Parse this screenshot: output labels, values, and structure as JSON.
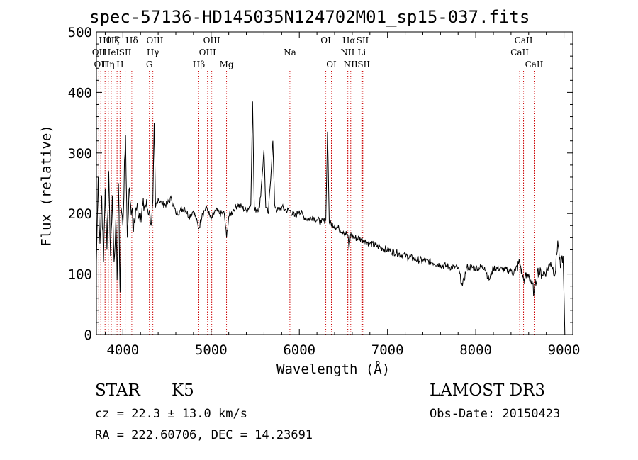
{
  "header": {
    "title": "spec-57136-HD145035N124702M01_sp15-037.fits"
  },
  "info": {
    "object_class": "STAR",
    "subclass": "K5",
    "survey": "LAMOST DR3",
    "cz": "cz = 22.3 ± 13.0 km/s",
    "obs_date": "Obs-Date: 20150423",
    "radec": "RA = 222.60706, DEC =  14.23691"
  },
  "chart_data": {
    "type": "line",
    "title": "spec-57136-HD145035N124702M01_sp15-037.fits",
    "xlabel": "Wavelength (Å)",
    "ylabel": "Flux (relative)",
    "xlim": [
      3700,
      9100
    ],
    "ylim": [
      0,
      500
    ],
    "xticks": [
      4000,
      5000,
      6000,
      7000,
      8000,
      9000
    ],
    "yticks": [
      0,
      100,
      200,
      300,
      400,
      500
    ],
    "series": [
      {
        "name": "flux",
        "x": [
          3700,
          3720,
          3740,
          3760,
          3780,
          3800,
          3820,
          3840,
          3860,
          3880,
          3900,
          3920,
          3935,
          3950,
          3968,
          3980,
          4000,
          4030,
          4050,
          4070,
          4101,
          4120,
          4150,
          4200,
          4250,
          4300,
          4320,
          4340,
          4355,
          4370,
          4400,
          4450,
          4500,
          4550,
          4600,
          4650,
          4700,
          4750,
          4800,
          4861,
          4900,
          4950,
          5000,
          5050,
          5100,
          5150,
          5175,
          5200,
          5250,
          5300,
          5350,
          5400,
          5450,
          5470,
          5490,
          5550,
          5600,
          5620,
          5650,
          5700,
          5720,
          5750,
          5800,
          5850,
          5893,
          5950,
          6000,
          6050,
          6100,
          6150,
          6200,
          6250,
          6300,
          6320,
          6340,
          6400,
          6450,
          6500,
          6550,
          6563,
          6580,
          6620,
          6700,
          6800,
          6900,
          7000,
          7100,
          7200,
          7300,
          7400,
          7500,
          7600,
          7700,
          7800,
          7850,
          7900,
          8000,
          8100,
          8150,
          8200,
          8300,
          8400,
          8450,
          8498,
          8542,
          8600,
          8662,
          8700,
          8750,
          8800,
          8850,
          8900,
          8930,
          8960,
          8990,
          9010
        ],
        "y": [
          120,
          260,
          150,
          230,
          120,
          240,
          140,
          270,
          130,
          230,
          120,
          190,
          90,
          250,
          70,
          210,
          180,
          330,
          160,
          240,
          205,
          170,
          210,
          200,
          215,
          205,
          180,
          220,
          350,
          210,
          225,
          215,
          215,
          225,
          200,
          205,
          210,
          195,
          205,
          175,
          200,
          210,
          190,
          205,
          200,
          200,
          160,
          195,
          205,
          215,
          210,
          205,
          215,
          385,
          205,
          210,
          305,
          210,
          200,
          320,
          215,
          205,
          210,
          205,
          205,
          195,
          205,
          195,
          190,
          195,
          190,
          185,
          190,
          335,
          185,
          180,
          175,
          170,
          165,
          140,
          165,
          160,
          158,
          150,
          145,
          140,
          135,
          130,
          125,
          122,
          120,
          115,
          112,
          110,
          80,
          112,
          110,
          112,
          90,
          110,
          108,
          105,
          105,
          120,
          90,
          100,
          70,
          105,
          100,
          105,
          120,
          100,
          155,
          110,
          130,
          0
        ]
      }
    ],
    "lines": [
      {
        "w": 3727,
        "label": "OII",
        "row": 2
      },
      {
        "w": 3750,
        "label": "OII",
        "row": 3
      },
      {
        "w": 3798,
        "label": "Hθ",
        "row": 1
      },
      {
        "w": 3835,
        "label": "Hη",
        "row": 3
      },
      {
        "w": 3869,
        "label": "HeI",
        "row": 2
      },
      {
        "w": 3889,
        "label": "Hζ",
        "row": 1
      },
      {
        "w": 3934,
        "label": "K",
        "row": 1
      },
      {
        "w": 3968,
        "label": "H",
        "row": 3
      },
      {
        "w": 4026,
        "label": "SII",
        "row": 2
      },
      {
        "w": 4101,
        "label": "Hδ",
        "row": 1
      },
      {
        "w": 4300,
        "label": "G",
        "row": 3
      },
      {
        "w": 4340,
        "label": "Hγ",
        "row": 2
      },
      {
        "w": 4363,
        "label": "OIII",
        "row": 1
      },
      {
        "w": 4861,
        "label": "Hβ",
        "row": 3
      },
      {
        "w": 4959,
        "label": "OIII",
        "row": 2
      },
      {
        "w": 5007,
        "label": "OIII",
        "row": 1
      },
      {
        "w": 5175,
        "label": "Mg",
        "row": 3
      },
      {
        "w": 5893,
        "label": "Na",
        "row": 2
      },
      {
        "w": 6300,
        "label": "OI",
        "row": 1
      },
      {
        "w": 6364,
        "label": "OI",
        "row": 3
      },
      {
        "w": 6548,
        "label": "NII",
        "row": 2
      },
      {
        "w": 6563,
        "label": "Hα",
        "row": 1
      },
      {
        "w": 6583,
        "label": "NII",
        "row": 3
      },
      {
        "w": 6708,
        "label": "Li",
        "row": 2
      },
      {
        "w": 6717,
        "label": "SII",
        "row": 1
      },
      {
        "w": 6731,
        "label": "SII",
        "row": 3
      },
      {
        "w": 8498,
        "label": "CaII",
        "row": 2
      },
      {
        "w": 8542,
        "label": "CaII",
        "row": 1
      },
      {
        "w": 8662,
        "label": "CaII",
        "row": 3
      }
    ],
    "colors": {
      "axis": "#000000",
      "series": "#000000",
      "lines": "#cc0000"
    }
  }
}
